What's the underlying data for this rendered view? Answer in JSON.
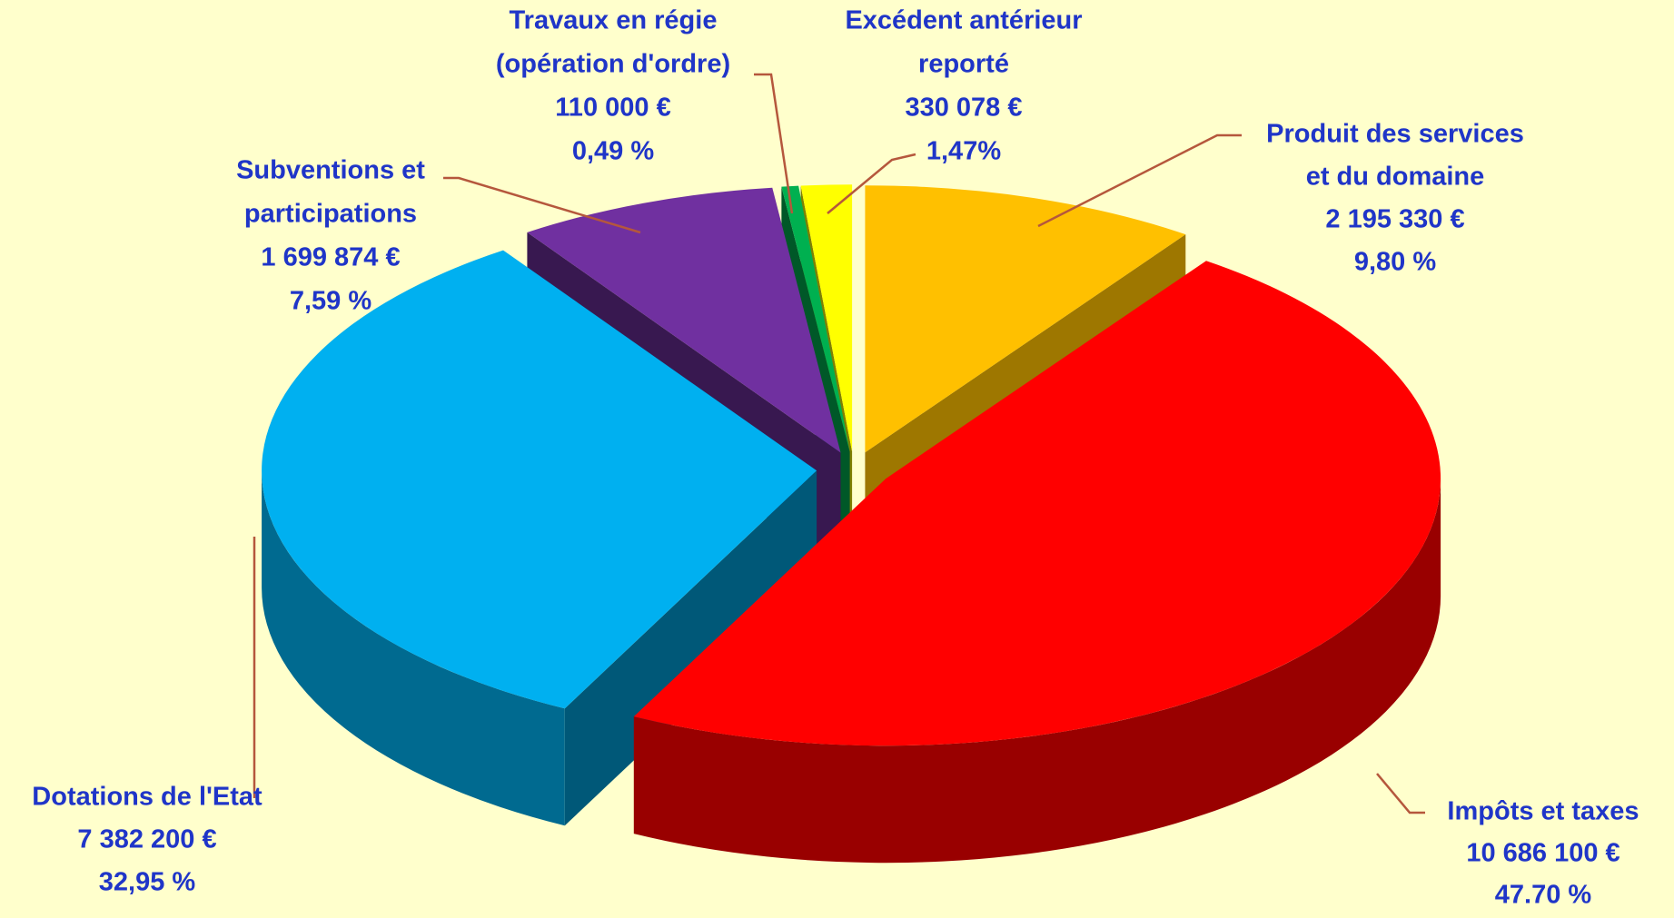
{
  "chart_data": {
    "type": "pie",
    "categories": [
      [
        "Produit des services",
        "et du domaine"
      ],
      [
        "Impôts et taxes"
      ],
      [
        "Dotations de l'Etat"
      ],
      [
        "Subventions et",
        "participations"
      ],
      [
        "Travaux en régie",
        "(opération d'ordre)"
      ],
      [
        "Excédent antérieur",
        "reporté"
      ]
    ],
    "values": [
      2195330,
      10686100,
      7382200,
      1699874,
      110000,
      330078
    ],
    "value_labels": [
      "2 195 330 €",
      "10 686 100 €",
      "7 382 200 €",
      "1 699 874 €",
      "110 000 €",
      "330 078 €"
    ],
    "percents": [
      9.8,
      47.7,
      32.95,
      7.59,
      0.49,
      1.47
    ],
    "percent_labels": [
      "9,80 %",
      "47.70 %",
      "32,95 %",
      "7,59 %",
      "0,49 %",
      "1,47%"
    ],
    "colors": [
      "#ffc000",
      "#ff0000",
      "#00b0f0",
      "#7030a0",
      "#00b050",
      "#ffff00"
    ]
  }
}
